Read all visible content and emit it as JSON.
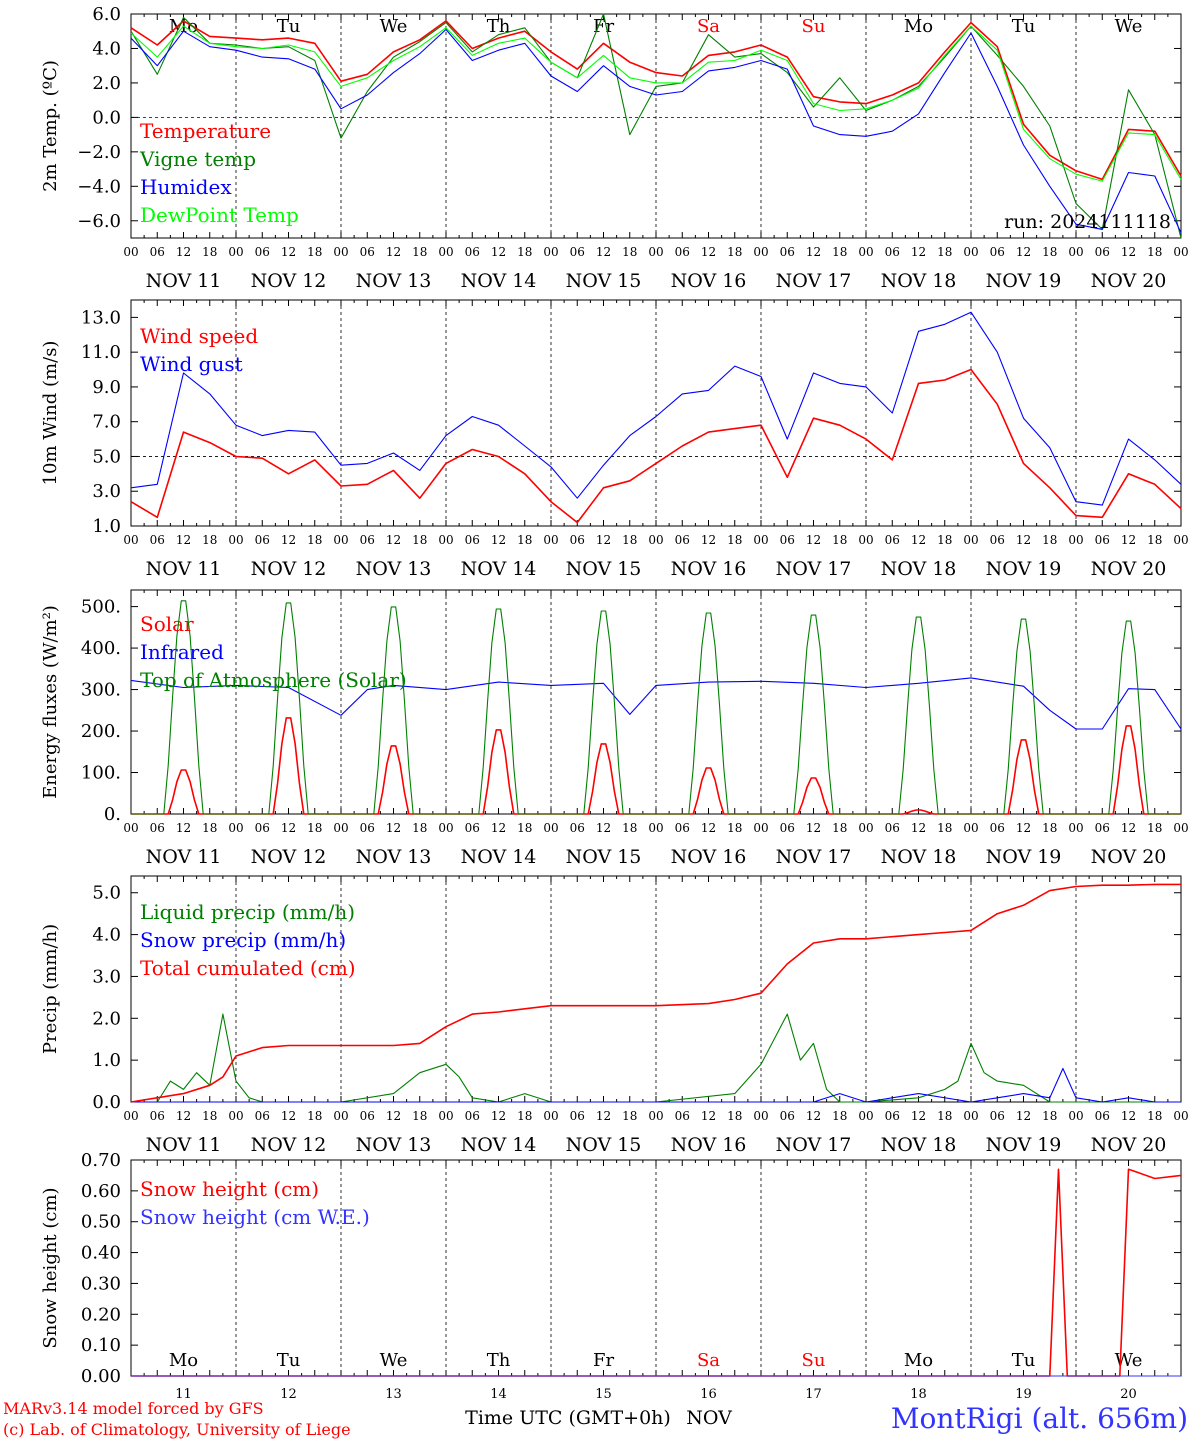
{
  "station_label": "MontRigi (alt. 656m)",
  "credits": [
    "MARv3.14 model forced by GFS",
    "(c) Lab. of Climatology, University of Liege"
  ],
  "bottom_axis_label": "Time UTC (GMT+0h)",
  "bottom_axis_month": "NOV",
  "colors": {
    "red": "#ff0000",
    "green": "#008000",
    "blue": "#0000ff",
    "lime": "#00ff00",
    "lightblue": "#3333ff"
  },
  "days": {
    "hour_ticks": [
      "00",
      "06",
      "12",
      "18"
    ],
    "final_hour_tick": "00",
    "weekdays": [
      "Mo",
      "Tu",
      "We",
      "Th",
      "Fr",
      "Sa",
      "Su",
      "Mo",
      "Tu",
      "We"
    ],
    "weekend_flags": [
      false,
      false,
      false,
      false,
      false,
      true,
      true,
      false,
      false,
      false
    ],
    "date_labels": [
      "NOV 11",
      "NOV 12",
      "NOV 13",
      "NOV 14",
      "NOV 15",
      "NOV 16",
      "NOV 17",
      "NOV 18",
      "NOV 19",
      "NOV 20"
    ],
    "day_numbers": [
      "11",
      "12",
      "13",
      "14",
      "15",
      "16",
      "17",
      "18",
      "19",
      "20"
    ]
  },
  "chart_data": [
    {
      "type": "line",
      "ylabel": "2m Temp. (ºC)",
      "ylim": [
        -7,
        6
      ],
      "yticks": [
        "6.0",
        "4.0",
        "2.0",
        "0.0",
        "−2.0",
        "−4.0",
        "−6.0"
      ],
      "ytick_values": [
        6,
        4,
        2,
        0,
        -2,
        -4,
        -6
      ],
      "reference_line": 0,
      "run_label": "run: 2024111118",
      "x_unit": "hours since Nov 11 00 UTC",
      "series": [
        {
          "name": "Temperature",
          "color": "red",
          "x": [
            0,
            6,
            12,
            18,
            24,
            30,
            36,
            42,
            48,
            54,
            60,
            66,
            72,
            78,
            84,
            90,
            96,
            102,
            108,
            114,
            120,
            126,
            132,
            138,
            144,
            150,
            156,
            162,
            168,
            174,
            180,
            186,
            192,
            198,
            204,
            210,
            216,
            222,
            228,
            234,
            240
          ],
          "values": [
            5.2,
            4.2,
            5.6,
            4.7,
            4.6,
            4.5,
            4.6,
            4.3,
            2.1,
            2.5,
            3.8,
            4.5,
            5.6,
            4.0,
            4.6,
            5.0,
            3.8,
            2.8,
            4.3,
            3.2,
            2.6,
            2.4,
            3.6,
            3.8,
            4.2,
            3.5,
            1.2,
            0.9,
            0.8,
            1.3,
            2.0,
            3.8,
            5.5,
            4.1,
            -0.4,
            -2.2,
            -3.1,
            -3.6,
            -0.7,
            -0.8,
            -3.4
          ]
        },
        {
          "name": "Vigne temp",
          "color": "green",
          "x": [
            0,
            6,
            12,
            18,
            24,
            30,
            36,
            42,
            48,
            54,
            60,
            66,
            72,
            78,
            84,
            90,
            96,
            102,
            108,
            114,
            120,
            126,
            132,
            138,
            144,
            150,
            156,
            162,
            168,
            174,
            180,
            186,
            192,
            198,
            204,
            210,
            216,
            222,
            228,
            234,
            240
          ],
          "values": [
            5.0,
            2.5,
            5.8,
            4.3,
            4.2,
            4.0,
            4.1,
            3.3,
            -1.2,
            1.5,
            3.5,
            4.4,
            5.5,
            3.8,
            4.8,
            5.2,
            3.2,
            2.3,
            6.0,
            -1.0,
            1.8,
            2.0,
            4.8,
            3.5,
            3.7,
            2.6,
            0.6,
            2.3,
            0.4,
            1.0,
            1.8,
            3.5,
            5.3,
            3.6,
            1.8,
            -0.5,
            -5.0,
            -6.5,
            1.6,
            -1.0,
            -7.0
          ]
        },
        {
          "name": "Humidex",
          "color": "blue",
          "x": [
            0,
            6,
            12,
            18,
            24,
            30,
            36,
            42,
            48,
            54,
            60,
            66,
            72,
            78,
            84,
            90,
            96,
            102,
            108,
            114,
            120,
            126,
            132,
            138,
            144,
            150,
            156,
            162,
            168,
            174,
            180,
            186,
            192,
            198,
            204,
            210,
            216,
            222,
            228,
            234,
            240
          ],
          "values": [
            4.6,
            3.0,
            5.0,
            4.1,
            3.9,
            3.5,
            3.4,
            2.8,
            0.5,
            1.3,
            2.6,
            3.7,
            5.1,
            3.3,
            3.9,
            4.3,
            2.4,
            1.5,
            3.0,
            1.8,
            1.3,
            1.5,
            2.7,
            2.9,
            3.3,
            2.8,
            -0.5,
            -1.0,
            -1.1,
            -0.8,
            0.2,
            2.6,
            4.9,
            1.8,
            -1.6,
            -4.0,
            -6.2,
            -6.5,
            -3.2,
            -3.4,
            -6.7
          ]
        },
        {
          "name": "DewPoint Temp",
          "color": "lime",
          "x": [
            0,
            6,
            12,
            18,
            24,
            30,
            36,
            42,
            48,
            54,
            60,
            66,
            72,
            78,
            84,
            90,
            96,
            102,
            108,
            114,
            120,
            126,
            132,
            138,
            144,
            150,
            156,
            162,
            168,
            174,
            180,
            186,
            192,
            198,
            204,
            210,
            216,
            222,
            228,
            234,
            240
          ],
          "values": [
            4.9,
            3.5,
            5.3,
            4.3,
            4.1,
            4.0,
            4.2,
            3.8,
            1.8,
            2.3,
            3.3,
            4.1,
            5.2,
            3.6,
            4.3,
            4.6,
            3.2,
            2.3,
            3.6,
            2.3,
            2.0,
            2.0,
            3.2,
            3.3,
            3.9,
            3.3,
            0.8,
            0.4,
            0.5,
            1.0,
            1.7,
            3.6,
            5.3,
            3.9,
            -0.7,
            -2.4,
            -3.3,
            -3.7,
            -0.9,
            -1.0,
            -3.6
          ]
        }
      ]
    },
    {
      "type": "line",
      "ylabel": "10m Wind (m/s)",
      "ylim": [
        1,
        14
      ],
      "yticks": [
        "13.0",
        "11.0",
        "9.0",
        "7.0",
        "5.0",
        "3.0",
        "1.0"
      ],
      "ytick_values": [
        13,
        11,
        9,
        7,
        5,
        3,
        1
      ],
      "reference_line": 5,
      "x_unit": "hours since Nov 11 00 UTC",
      "series": [
        {
          "name": "Wind speed",
          "color": "red",
          "x": [
            0,
            6,
            12,
            18,
            24,
            30,
            36,
            42,
            48,
            54,
            60,
            66,
            72,
            78,
            84,
            90,
            96,
            102,
            108,
            114,
            120,
            126,
            132,
            138,
            144,
            150,
            156,
            162,
            168,
            174,
            180,
            186,
            192,
            198,
            204,
            210,
            216,
            222,
            228,
            234,
            240
          ],
          "values": [
            2.4,
            1.5,
            6.4,
            5.8,
            5.0,
            4.9,
            4.0,
            4.8,
            3.3,
            3.4,
            4.2,
            2.6,
            4.6,
            5.4,
            5.0,
            4.0,
            2.4,
            1.2,
            3.2,
            3.6,
            4.6,
            5.6,
            6.4,
            6.6,
            6.8,
            3.8,
            7.2,
            6.8,
            6.0,
            4.8,
            9.2,
            9.4,
            10.0,
            8.0,
            4.6,
            3.2,
            1.6,
            1.5,
            4.0,
            3.4,
            2.0
          ]
        },
        {
          "name": "Wind gust",
          "color": "blue",
          "x": [
            0,
            6,
            12,
            18,
            24,
            30,
            36,
            42,
            48,
            54,
            60,
            66,
            72,
            78,
            84,
            90,
            96,
            102,
            108,
            114,
            120,
            126,
            132,
            138,
            144,
            150,
            156,
            162,
            168,
            174,
            180,
            186,
            192,
            198,
            204,
            210,
            216,
            222,
            228,
            234,
            240
          ],
          "values": [
            3.2,
            3.4,
            9.8,
            8.6,
            6.8,
            6.2,
            6.5,
            6.4,
            4.5,
            4.6,
            5.2,
            4.2,
            6.2,
            7.3,
            6.8,
            5.6,
            4.4,
            2.6,
            4.5,
            6.2,
            7.3,
            8.6,
            8.8,
            10.2,
            9.6,
            6.0,
            9.8,
            9.2,
            9.0,
            7.5,
            12.2,
            12.6,
            13.3,
            11.0,
            7.2,
            5.5,
            2.4,
            2.2,
            6.0,
            4.8,
            3.4
          ]
        }
      ]
    },
    {
      "type": "line",
      "ylabel": "Energy fluxes (W/m²)",
      "ylim": [
        0,
        540
      ],
      "yticks": [
        "500.",
        "400.",
        "300.",
        "200.",
        "100.",
        "0."
      ],
      "ytick_values": [
        500,
        400,
        300,
        200,
        100,
        0
      ],
      "x_unit": "hours since Nov 11 00 UTC",
      "series": [
        {
          "name": "Solar",
          "color": "red",
          "daily_peaks": [
            110,
            240,
            170,
            210,
            175,
            115,
            90,
            10,
            185,
            220
          ]
        },
        {
          "name": "Infrared",
          "color": "blue",
          "x": [
            0,
            12,
            24,
            36,
            48,
            54,
            60,
            72,
            84,
            96,
            108,
            114,
            120,
            132,
            144,
            156,
            168,
            180,
            192,
            204,
            210,
            216,
            222,
            228,
            234,
            240
          ],
          "values": [
            322,
            305,
            310,
            305,
            238,
            300,
            310,
            300,
            318,
            310,
            315,
            240,
            310,
            318,
            320,
            315,
            305,
            315,
            328,
            308,
            250,
            205,
            205,
            302,
            300,
            205
          ]
        },
        {
          "name": "Top of Atmosphere (Solar)",
          "color": "green",
          "daily_peaks": [
            525,
            520,
            510,
            505,
            500,
            495,
            490,
            485,
            480,
            475
          ]
        }
      ]
    },
    {
      "type": "line",
      "ylabel": "Precip (mm/h)",
      "ylim": [
        0,
        5.4
      ],
      "yticks": [
        "5.0",
        "4.0",
        "3.0",
        "2.0",
        "1.0",
        "0.0"
      ],
      "ytick_values": [
        5,
        4,
        3,
        2,
        1,
        0
      ],
      "x_unit": "hours since Nov 11 00 UTC",
      "series": [
        {
          "name": "Liquid precip (mm/h)",
          "color": "green",
          "x": [
            0,
            6,
            9,
            12,
            15,
            18,
            21,
            24,
            27,
            30,
            48,
            60,
            66,
            72,
            75,
            78,
            84,
            90,
            96,
            114,
            120,
            138,
            144,
            150,
            153,
            156,
            159,
            162,
            168,
            180,
            186,
            189,
            192,
            195,
            198,
            204,
            210,
            216,
            222,
            228,
            234,
            240
          ],
          "values": [
            0,
            0,
            0.5,
            0.3,
            0.7,
            0.4,
            2.1,
            0.5,
            0.1,
            0,
            0,
            0.2,
            0.7,
            0.9,
            0.6,
            0.1,
            0,
            0.2,
            0,
            0,
            0,
            0.2,
            0.9,
            2.1,
            1.0,
            1.4,
            0.3,
            0,
            0,
            0.1,
            0.3,
            0.5,
            1.4,
            0.7,
            0.5,
            0.4,
            0,
            0,
            0,
            0,
            0,
            0
          ]
        },
        {
          "name": "Snow precip (mm/h)",
          "color": "blue",
          "x": [
            0,
            156,
            162,
            168,
            180,
            192,
            198,
            204,
            210,
            213,
            216,
            222,
            228,
            234,
            240
          ],
          "values": [
            0,
            0,
            0.2,
            0,
            0.2,
            0,
            0.1,
            0.2,
            0.1,
            0.8,
            0.1,
            0,
            0.1,
            0,
            0
          ]
        },
        {
          "name": "Total cumulated (cm)",
          "color": "red",
          "x": [
            0,
            12,
            18,
            21,
            24,
            30,
            36,
            48,
            60,
            66,
            72,
            78,
            84,
            96,
            120,
            132,
            138,
            144,
            150,
            156,
            162,
            168,
            174,
            180,
            186,
            192,
            198,
            204,
            210,
            216,
            222,
            228,
            234,
            240
          ],
          "values": [
            0,
            0.2,
            0.4,
            0.6,
            1.1,
            1.3,
            1.35,
            1.35,
            1.35,
            1.4,
            1.8,
            2.1,
            2.15,
            2.3,
            2.3,
            2.35,
            2.45,
            2.6,
            3.3,
            3.8,
            3.9,
            3.9,
            3.95,
            4.0,
            4.05,
            4.1,
            4.5,
            4.7,
            5.05,
            5.15,
            5.18,
            5.18,
            5.2,
            5.2
          ]
        }
      ]
    },
    {
      "type": "line",
      "ylabel": "Snow height (cm)",
      "ylim": [
        0,
        0.7
      ],
      "yticks": [
        "0.70",
        "0.60",
        "0.50",
        "0.40",
        "0.30",
        "0.20",
        "0.10",
        "0.00"
      ],
      "ytick_values": [
        0.7,
        0.6,
        0.5,
        0.4,
        0.3,
        0.2,
        0.1,
        0
      ],
      "x_unit": "hours since Nov 11 00 UTC",
      "series": [
        {
          "name": "Snow height (cm)",
          "color": "red",
          "x": [
            0,
            210,
            212,
            214,
            226,
            228,
            230,
            234,
            240
          ],
          "values": [
            0,
            0,
            0.67,
            0,
            0,
            0.67,
            0.66,
            0.64,
            0.65
          ]
        },
        {
          "name": "Snow height (cm W.E.)",
          "color": "lightblue",
          "x": [
            0,
            240
          ],
          "values": [
            0,
            0
          ]
        }
      ]
    }
  ]
}
